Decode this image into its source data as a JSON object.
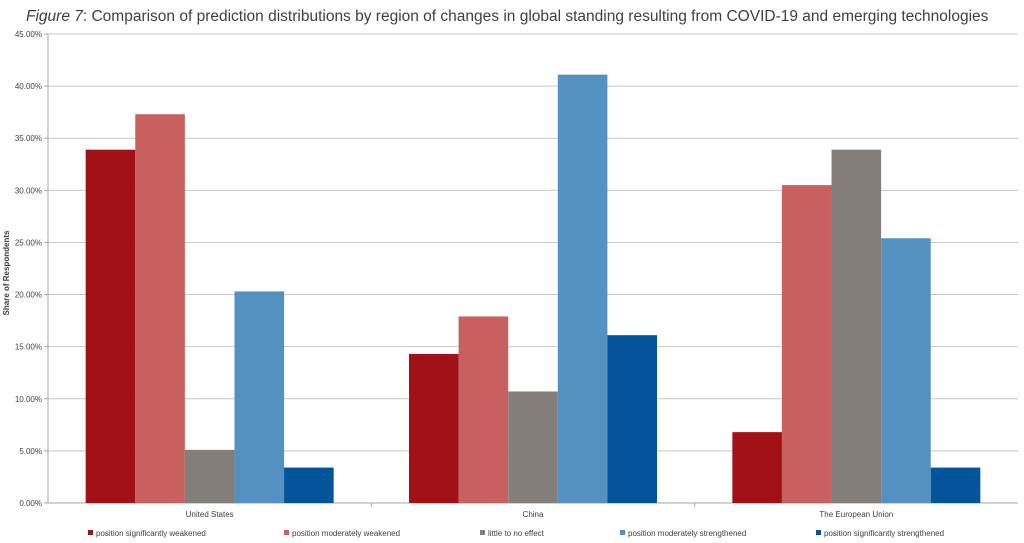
{
  "figure": {
    "label": "Figure 7",
    "caption": ": Comparison of prediction distributions by region of changes in global standing resulting from COVID-19 and emerging technologies"
  },
  "chart_data": {
    "type": "bar",
    "categories": [
      "United States",
      "China",
      "The European Union"
    ],
    "series": [
      {
        "name": "position significantly weakened",
        "color": "#A21018",
        "values": [
          33.9,
          14.3,
          6.8
        ]
      },
      {
        "name": "position moderately weakened",
        "color": "#C86060",
        "values": [
          37.3,
          17.9,
          30.5
        ]
      },
      {
        "name": "little to no effect",
        "color": "#847E7A",
        "values": [
          5.1,
          10.7,
          33.9
        ]
      },
      {
        "name": "position moderately strengthened",
        "color": "#5590C2",
        "values": [
          20.3,
          41.1,
          25.4
        ]
      },
      {
        "name": "position significantly strengthened",
        "color": "#03549A",
        "values": [
          3.4,
          16.1,
          3.4
        ]
      }
    ],
    "ylabel": "Share of Respondents",
    "ylim": [
      0,
      45
    ],
    "yticks": [
      "0.00%",
      "5.00%",
      "10.00%",
      "15.00%",
      "20.00%",
      "25.00%",
      "30.00%",
      "35.00%",
      "40.00%",
      "45.00%"
    ],
    "grid": true,
    "legend_position": "bottom"
  }
}
